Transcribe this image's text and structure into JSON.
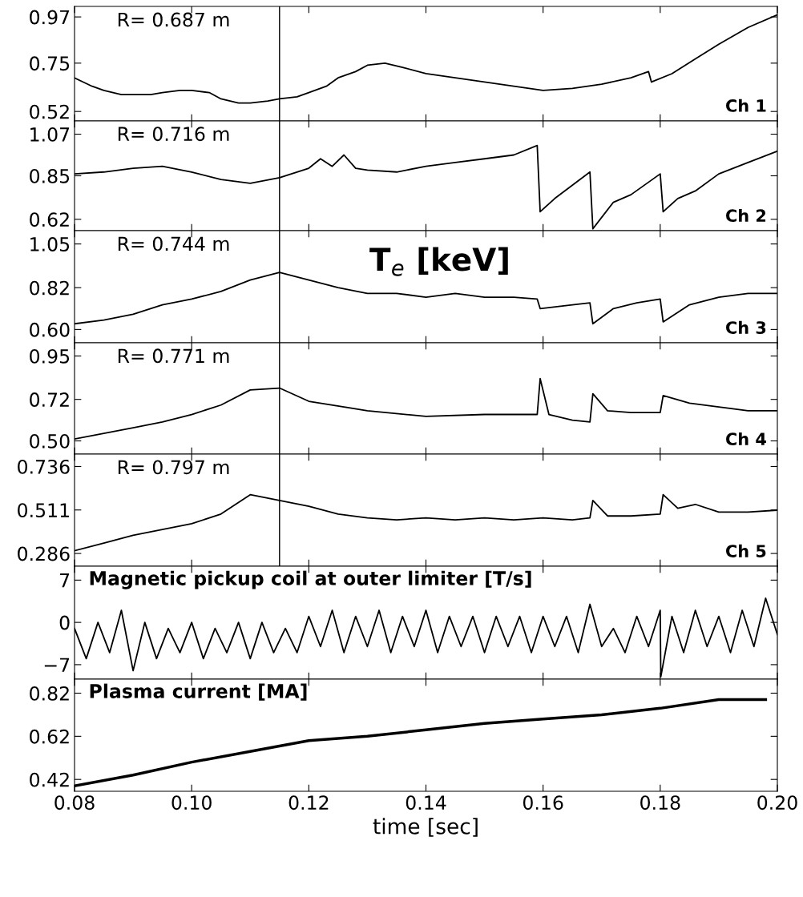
{
  "chart_data": [
    {
      "type": "line",
      "x": [
        0.08,
        0.083,
        0.085,
        0.088,
        0.09,
        0.093,
        0.095,
        0.098,
        0.1,
        0.103,
        0.105,
        0.108,
        0.11,
        0.113,
        0.115,
        0.118,
        0.12,
        0.123,
        0.125,
        0.128,
        0.13,
        0.133,
        0.136,
        0.14,
        0.145,
        0.15,
        0.155,
        0.16,
        0.165,
        0.17,
        0.175,
        0.178,
        0.1785,
        0.182,
        0.186,
        0.19,
        0.195,
        0.2
      ],
      "values": [
        0.68,
        0.64,
        0.62,
        0.6,
        0.6,
        0.6,
        0.61,
        0.62,
        0.62,
        0.61,
        0.58,
        0.56,
        0.56,
        0.57,
        0.58,
        0.59,
        0.61,
        0.64,
        0.68,
        0.71,
        0.74,
        0.75,
        0.73,
        0.7,
        0.68,
        0.66,
        0.64,
        0.62,
        0.63,
        0.65,
        0.68,
        0.71,
        0.66,
        0.7,
        0.77,
        0.84,
        0.92,
        0.98
      ],
      "color": "#000000",
      "ylim": [
        0.475,
        1.02
      ],
      "yticks": [
        0.52,
        0.75,
        0.97
      ],
      "xlim": [
        0.08,
        0.2
      ],
      "xticks": [
        {
          "value": 0.08,
          "label": null
        },
        {
          "value": 0.1,
          "label": null
        },
        {
          "value": 0.12,
          "label": null
        },
        {
          "value": 0.14,
          "label": null
        },
        {
          "value": 0.16,
          "label": null
        },
        {
          "value": 0.18,
          "label": null
        },
        {
          "value": 0.2,
          "label": null
        }
      ],
      "tick_labels": "y",
      "ref_lines": [
        {
          "axis": "x",
          "value": 0.115,
          "label": null
        }
      ],
      "annotations": [
        "R= 0.687 m",
        "Ch 1"
      ]
    },
    {
      "type": "line",
      "x": [
        0.08,
        0.085,
        0.09,
        0.095,
        0.1,
        0.105,
        0.11,
        0.115,
        0.12,
        0.122,
        0.124,
        0.126,
        0.128,
        0.13,
        0.135,
        0.14,
        0.145,
        0.15,
        0.155,
        0.159,
        0.1595,
        0.162,
        0.165,
        0.168,
        0.1685,
        0.172,
        0.175,
        0.18,
        0.1805,
        0.183,
        0.186,
        0.19,
        0.195,
        0.2
      ],
      "values": [
        0.86,
        0.87,
        0.89,
        0.9,
        0.87,
        0.83,
        0.81,
        0.84,
        0.89,
        0.94,
        0.9,
        0.96,
        0.89,
        0.88,
        0.87,
        0.9,
        0.92,
        0.94,
        0.96,
        1.01,
        0.66,
        0.73,
        0.8,
        0.87,
        0.57,
        0.71,
        0.75,
        0.86,
        0.66,
        0.73,
        0.77,
        0.86,
        0.92,
        0.98
      ],
      "color": "#000000",
      "ylim": [
        0.56,
        1.14
      ],
      "yticks": [
        0.62,
        0.85,
        1.07
      ],
      "xlim": [
        0.08,
        0.2
      ],
      "xticks": [
        {
          "value": 0.08,
          "label": null
        },
        {
          "value": 0.1,
          "label": null
        },
        {
          "value": 0.12,
          "label": null
        },
        {
          "value": 0.14,
          "label": null
        },
        {
          "value": 0.16,
          "label": null
        },
        {
          "value": 0.18,
          "label": null
        },
        {
          "value": 0.2,
          "label": null
        }
      ],
      "tick_labels": "y",
      "ref_lines": [
        {
          "axis": "x",
          "value": 0.115,
          "label": null
        }
      ],
      "annotations": [
        "R= 0.716 m",
        "Ch 2"
      ]
    },
    {
      "type": "line",
      "x": [
        0.08,
        0.085,
        0.09,
        0.095,
        0.1,
        0.105,
        0.11,
        0.115,
        0.12,
        0.125,
        0.13,
        0.135,
        0.14,
        0.145,
        0.15,
        0.155,
        0.159,
        0.1595,
        0.165,
        0.168,
        0.1685,
        0.172,
        0.176,
        0.18,
        0.1805,
        0.185,
        0.19,
        0.195,
        0.2
      ],
      "values": [
        0.63,
        0.65,
        0.68,
        0.73,
        0.76,
        0.8,
        0.86,
        0.9,
        0.86,
        0.82,
        0.79,
        0.79,
        0.77,
        0.79,
        0.77,
        0.77,
        0.76,
        0.71,
        0.73,
        0.74,
        0.63,
        0.71,
        0.74,
        0.76,
        0.64,
        0.73,
        0.77,
        0.79,
        0.79
      ],
      "color": "#000000",
      "ylim": [
        0.53,
        1.12
      ],
      "yticks": [
        {
          "value": 0.6,
          "label": "0.60"
        },
        0.82,
        1.05
      ],
      "xlim": [
        0.08,
        0.2
      ],
      "xticks": [
        {
          "value": 0.08,
          "label": null
        },
        {
          "value": 0.1,
          "label": null
        },
        {
          "value": 0.12,
          "label": null
        },
        {
          "value": 0.14,
          "label": null
        },
        {
          "value": 0.16,
          "label": null
        },
        {
          "value": 0.18,
          "label": null
        },
        {
          "value": 0.2,
          "label": null
        }
      ],
      "tick_labels": "y",
      "ref_lines": [
        {
          "axis": "x",
          "value": 0.115,
          "label": null
        }
      ],
      "annotations": [
        "R= 0.744 m",
        "Ch 3",
        "T$_{e}$ [keV]"
      ]
    },
    {
      "type": "line",
      "x": [
        0.08,
        0.085,
        0.09,
        0.095,
        0.1,
        0.105,
        0.11,
        0.115,
        0.12,
        0.13,
        0.14,
        0.15,
        0.159,
        0.1595,
        0.161,
        0.165,
        0.168,
        0.1685,
        0.171,
        0.175,
        0.18,
        0.1805,
        0.185,
        0.19,
        0.195,
        0.2
      ],
      "values": [
        0.51,
        0.54,
        0.57,
        0.6,
        0.64,
        0.69,
        0.77,
        0.78,
        0.71,
        0.66,
        0.63,
        0.64,
        0.64,
        0.83,
        0.64,
        0.61,
        0.6,
        0.75,
        0.66,
        0.65,
        0.65,
        0.74,
        0.7,
        0.68,
        0.66,
        0.66
      ],
      "color": "#000000",
      "ylim": [
        0.43,
        1.02
      ],
      "yticks": [
        {
          "value": 0.5,
          "label": "0.50"
        },
        0.72,
        0.95
      ],
      "xlim": [
        0.08,
        0.2
      ],
      "xticks": [
        {
          "value": 0.08,
          "label": null
        },
        {
          "value": 0.1,
          "label": null
        },
        {
          "value": 0.12,
          "label": null
        },
        {
          "value": 0.14,
          "label": null
        },
        {
          "value": 0.16,
          "label": null
        },
        {
          "value": 0.18,
          "label": null
        },
        {
          "value": 0.2,
          "label": null
        }
      ],
      "tick_labels": "y",
      "ref_lines": [
        {
          "axis": "x",
          "value": 0.115,
          "label": null
        }
      ],
      "annotations": [
        "R= 0.771 m",
        "Ch 4"
      ]
    },
    {
      "type": "line",
      "x": [
        0.08,
        0.085,
        0.09,
        0.095,
        0.1,
        0.105,
        0.11,
        0.115,
        0.12,
        0.125,
        0.13,
        0.135,
        0.14,
        0.145,
        0.15,
        0.155,
        0.16,
        0.165,
        0.168,
        0.1685,
        0.171,
        0.175,
        0.18,
        0.1805,
        0.183,
        0.186,
        0.19,
        0.195,
        0.2
      ],
      "values": [
        0.3,
        0.34,
        0.38,
        0.41,
        0.44,
        0.49,
        0.59,
        0.56,
        0.53,
        0.49,
        0.47,
        0.46,
        0.47,
        0.46,
        0.47,
        0.46,
        0.47,
        0.46,
        0.47,
        0.56,
        0.48,
        0.48,
        0.49,
        0.59,
        0.52,
        0.54,
        0.5,
        0.5,
        0.51
      ],
      "color": "#000000",
      "ylim": [
        0.22,
        0.8
      ],
      "yticks": [
        0.286,
        0.511,
        0.736
      ],
      "xlim": [
        0.08,
        0.2
      ],
      "xticks": [
        {
          "value": 0.08,
          "label": null
        },
        {
          "value": 0.1,
          "label": null
        },
        {
          "value": 0.12,
          "label": null
        },
        {
          "value": 0.14,
          "label": null
        },
        {
          "value": 0.16,
          "label": null
        },
        {
          "value": 0.18,
          "label": null
        },
        {
          "value": 0.2,
          "label": null
        }
      ],
      "tick_labels": "y",
      "ref_lines": [
        {
          "axis": "x",
          "value": 0.115,
          "label": null
        }
      ],
      "annotations": [
        "R= 0.797 m",
        "Ch 5"
      ]
    },
    {
      "type": "line",
      "title": "Magnetic pickup coil at outer limiter [T/s]",
      "x": [
        0.08,
        0.082,
        0.084,
        0.086,
        0.088,
        0.09,
        0.092,
        0.094,
        0.096,
        0.098,
        0.1,
        0.102,
        0.104,
        0.106,
        0.108,
        0.11,
        0.112,
        0.114,
        0.116,
        0.118,
        0.12,
        0.122,
        0.124,
        0.126,
        0.128,
        0.13,
        0.132,
        0.134,
        0.136,
        0.138,
        0.14,
        0.142,
        0.144,
        0.146,
        0.148,
        0.15,
        0.152,
        0.154,
        0.156,
        0.158,
        0.16,
        0.162,
        0.164,
        0.166,
        0.168,
        0.17,
        0.172,
        0.174,
        0.176,
        0.178,
        0.18,
        0.1801,
        0.182,
        0.184,
        0.186,
        0.188,
        0.19,
        0.192,
        0.194,
        0.196,
        0.198,
        0.2
      ],
      "values": [
        -1,
        -6,
        0,
        -5,
        2,
        -8,
        0,
        -6,
        -1,
        -5,
        0,
        -6,
        -1,
        -5,
        0,
        -6,
        0,
        -5,
        -1,
        -5,
        1,
        -4,
        2,
        -5,
        1,
        -4,
        2,
        -5,
        1,
        -4,
        2,
        -5,
        1,
        -4,
        1,
        -5,
        1,
        -4,
        1,
        -5,
        1,
        -4,
        1,
        -5,
        3,
        -4,
        -1,
        -5,
        1,
        -4,
        2,
        -9,
        1,
        -5,
        2,
        -4,
        1,
        -5,
        2,
        -4,
        4,
        -2
      ],
      "color": "#000000",
      "ylim": [
        -9.4,
        9.3
      ],
      "yticks": [
        {
          "value": -7,
          "label": "−7"
        },
        0,
        7
      ],
      "xlim": [
        0.08,
        0.2
      ],
      "xticks": [
        {
          "value": 0.08,
          "label": null
        },
        {
          "value": 0.1,
          "label": null
        },
        {
          "value": 0.12,
          "label": null
        },
        {
          "value": 0.14,
          "label": null
        },
        {
          "value": 0.16,
          "label": null
        },
        {
          "value": 0.18,
          "label": null
        },
        {
          "value": 0.2,
          "label": null
        }
      ],
      "tick_labels": "y"
    },
    {
      "type": "line",
      "title": "Plasma current [MA]",
      "xlabel": "time [sec]",
      "x": [
        0.08,
        0.09,
        0.1,
        0.11,
        0.12,
        0.13,
        0.14,
        0.15,
        0.16,
        0.17,
        0.18,
        0.19,
        0.198
      ],
      "values": [
        0.39,
        0.44,
        0.5,
        0.55,
        0.6,
        0.62,
        0.65,
        0.68,
        0.7,
        0.72,
        0.75,
        0.79,
        0.79
      ],
      "color": "#000000",
      "ylim": [
        0.365,
        0.885
      ],
      "yticks": [
        0.42,
        0.62,
        0.82
      ],
      "xlim": [
        0.08,
        0.2
      ],
      "xticks": [
        {
          "value": 0.08,
          "label": "0.08"
        },
        {
          "value": 0.1,
          "label": "0.10"
        },
        {
          "value": 0.12,
          "label": "0.12"
        },
        {
          "value": 0.14,
          "label": "0.14"
        },
        {
          "value": 0.16,
          "label": "0.16"
        },
        {
          "value": 0.18,
          "label": "0.18"
        },
        {
          "value": 0.2,
          "label": "0.20"
        }
      ]
    }
  ]
}
